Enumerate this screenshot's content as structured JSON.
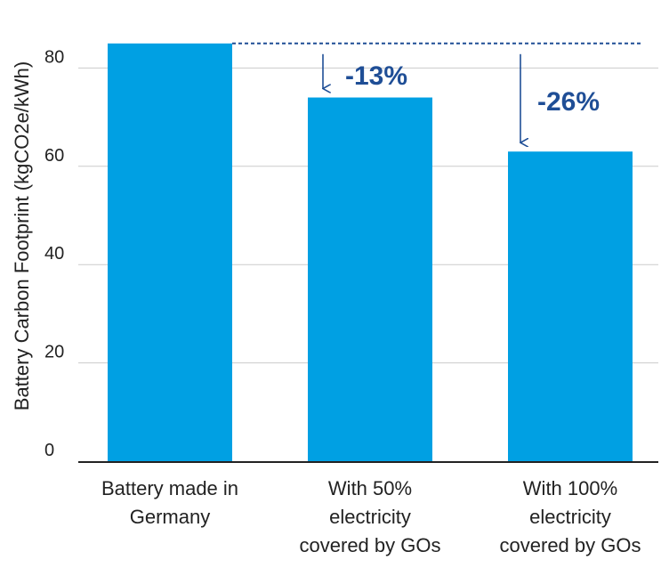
{
  "chart_data": {
    "type": "bar",
    "ylabel": "Battery Carbon Footprint (kgCO2e/kWh)",
    "xlabel": "",
    "ylim": [
      0,
      85
    ],
    "yticks": [
      0,
      20,
      40,
      60,
      80
    ],
    "categories": [
      [
        "Battery made in",
        "Germany"
      ],
      [
        "With 50%",
        "electricity",
        "covered by GOs"
      ],
      [
        "With 100%",
        "electricity",
        "covered by GOs"
      ]
    ],
    "values": [
      85,
      74,
      63
    ],
    "annotations": [
      {
        "category_index": 1,
        "text": "-13%"
      },
      {
        "category_index": 2,
        "text": "-26%"
      }
    ],
    "reference_line_value": 85,
    "grid": "horizontal",
    "colors": {
      "bar": "#00a0e3",
      "annotation": "#1f4e96",
      "grid": "#cccccc",
      "axis": "#222222"
    }
  }
}
